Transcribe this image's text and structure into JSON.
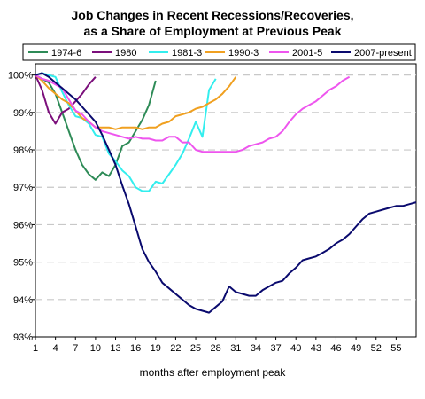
{
  "chart_data": {
    "type": "line",
    "title": [
      "Job Changes in Recent Recessions/Recoveries,",
      "as a Share of Employment at Previous Peak"
    ],
    "xlabel": "months after employment peak",
    "ylabel": "",
    "xlim": [
      1,
      58
    ],
    "ylim": [
      93,
      100.3
    ],
    "x_ticks": [
      1,
      4,
      7,
      10,
      13,
      16,
      19,
      22,
      25,
      28,
      31,
      34,
      37,
      40,
      43,
      46,
      49,
      52,
      55
    ],
    "y_ticks": [
      93,
      94,
      95,
      96,
      97,
      98,
      99,
      100
    ],
    "y_tick_labels": [
      "93%",
      "94%",
      "95%",
      "96%",
      "97%",
      "98%",
      "99%",
      "100%"
    ],
    "grid": "horizontal dashed",
    "legend_position": "top",
    "series": [
      {
        "name": "1974-6",
        "color": "#2e8b57",
        "x": [
          1,
          2,
          3,
          4,
          5,
          6,
          7,
          8,
          9,
          10,
          11,
          12,
          13,
          14,
          15,
          16,
          17,
          18,
          19
        ],
        "values": [
          100.0,
          99.9,
          99.8,
          99.5,
          99.0,
          98.5,
          98.0,
          97.6,
          97.35,
          97.2,
          97.4,
          97.3,
          97.6,
          98.1,
          98.2,
          98.5,
          98.8,
          99.2,
          99.85
        ]
      },
      {
        "name": "1980",
        "color": "#7b0f7b",
        "x": [
          1,
          2,
          3,
          4,
          5,
          6,
          7,
          8,
          9,
          10
        ],
        "values": [
          100.0,
          99.6,
          99.0,
          98.7,
          99.0,
          99.1,
          99.3,
          99.5,
          99.75,
          99.95
        ]
      },
      {
        "name": "1981-3",
        "color": "#33eeee",
        "x": [
          1,
          2,
          3,
          4,
          5,
          6,
          7,
          8,
          9,
          10,
          11,
          12,
          13,
          14,
          15,
          16,
          17,
          18,
          19,
          20,
          21,
          22,
          23,
          24,
          25,
          26,
          27,
          28
        ],
        "values": [
          100.0,
          100.05,
          100.0,
          99.95,
          99.55,
          99.2,
          98.9,
          98.85,
          98.7,
          98.4,
          98.35,
          97.9,
          97.7,
          97.45,
          97.3,
          97.0,
          96.9,
          96.9,
          97.15,
          97.1,
          97.35,
          97.6,
          97.9,
          98.3,
          98.75,
          98.35,
          99.6,
          99.9
        ]
      },
      {
        "name": "1990-3",
        "color": "#f0a020",
        "x": [
          1,
          2,
          3,
          4,
          5,
          6,
          7,
          8,
          9,
          10,
          11,
          12,
          13,
          14,
          15,
          16,
          17,
          18,
          19,
          20,
          21,
          22,
          23,
          24,
          25,
          26,
          27,
          28,
          29,
          30,
          31
        ],
        "values": [
          100.0,
          99.85,
          99.65,
          99.5,
          99.35,
          99.25,
          99.05,
          98.85,
          98.75,
          98.6,
          98.6,
          98.6,
          98.55,
          98.6,
          98.6,
          98.6,
          98.55,
          98.6,
          98.6,
          98.7,
          98.75,
          98.9,
          98.95,
          99.0,
          99.1,
          99.15,
          99.25,
          99.35,
          99.5,
          99.7,
          99.95
        ]
      },
      {
        "name": "2001-5",
        "color": "#ee55ee",
        "x": [
          1,
          2,
          3,
          4,
          5,
          6,
          7,
          8,
          9,
          10,
          11,
          12,
          13,
          14,
          15,
          16,
          17,
          18,
          19,
          20,
          21,
          22,
          23,
          24,
          25,
          26,
          27,
          28,
          29,
          30,
          31,
          32,
          33,
          34,
          35,
          36,
          37,
          38,
          39,
          40,
          41,
          42,
          43,
          44,
          45,
          46,
          47,
          48
        ],
        "values": [
          100.0,
          99.9,
          99.85,
          99.75,
          99.65,
          99.35,
          99.05,
          98.95,
          98.75,
          98.6,
          98.5,
          98.45,
          98.4,
          98.35,
          98.3,
          98.35,
          98.3,
          98.3,
          98.25,
          98.25,
          98.35,
          98.35,
          98.2,
          98.2,
          98.0,
          97.95,
          97.95,
          97.95,
          97.95,
          97.95,
          97.95,
          98.0,
          98.1,
          98.15,
          98.2,
          98.3,
          98.35,
          98.5,
          98.75,
          98.95,
          99.1,
          99.2,
          99.3,
          99.45,
          99.6,
          99.7,
          99.85,
          99.95
        ]
      },
      {
        "name": "2007-present",
        "color": "#0a0a6e",
        "x": [
          1,
          2,
          3,
          4,
          5,
          6,
          7,
          8,
          9,
          10,
          11,
          12,
          13,
          14,
          15,
          16,
          17,
          18,
          19,
          20,
          21,
          22,
          23,
          24,
          25,
          26,
          27,
          28,
          29,
          30,
          31,
          32,
          33,
          34,
          35,
          36,
          37,
          38,
          39,
          40,
          41,
          42,
          43,
          44,
          45,
          46,
          47,
          48,
          49,
          50,
          51,
          52,
          53,
          54,
          55,
          56,
          57,
          58
        ],
        "values": [
          100.0,
          100.05,
          99.95,
          99.8,
          99.65,
          99.5,
          99.35,
          99.15,
          98.95,
          98.75,
          98.4,
          98.0,
          97.6,
          97.05,
          96.55,
          95.95,
          95.35,
          95.0,
          94.75,
          94.45,
          94.3,
          94.15,
          94.0,
          93.85,
          93.75,
          93.7,
          93.65,
          93.8,
          93.95,
          94.35,
          94.2,
          94.15,
          94.1,
          94.1,
          94.25,
          94.35,
          94.45,
          94.5,
          94.7,
          94.85,
          95.05,
          95.1,
          95.15,
          95.25,
          95.35,
          95.5,
          95.6,
          95.75,
          95.95,
          96.15,
          96.3,
          96.35,
          96.4,
          96.45,
          96.5,
          96.5,
          96.55,
          96.6
        ]
      }
    ]
  }
}
